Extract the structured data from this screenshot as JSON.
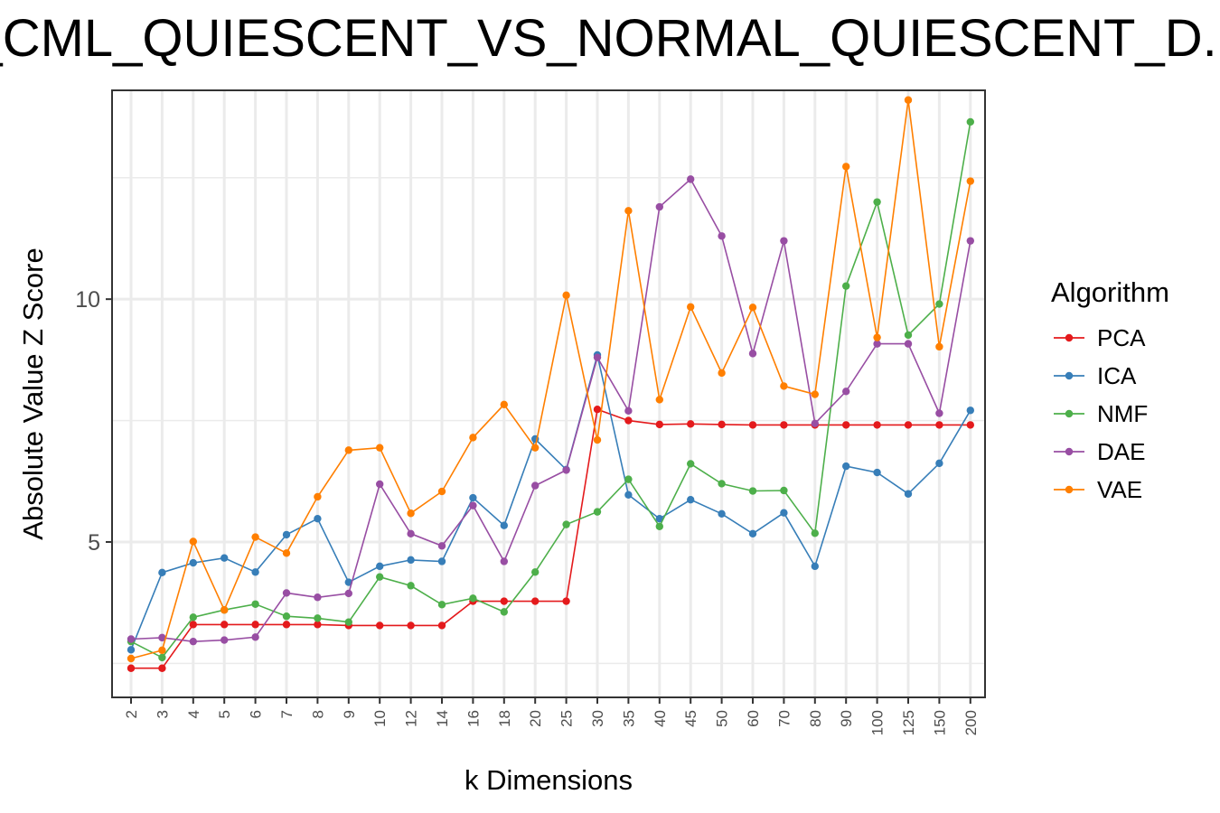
{
  "chart_data": {
    "type": "line",
    "title": "...AM_CML_QUIESCENT_VS_NORMAL_QUIESCENT_D...",
    "xlabel": "k Dimensions",
    "ylabel": "Absolute Value Z Score",
    "categories": [
      "2",
      "3",
      "4",
      "5",
      "6",
      "7",
      "8",
      "9",
      "10",
      "12",
      "14",
      "16",
      "18",
      "20",
      "25",
      "30",
      "35",
      "40",
      "45",
      "50",
      "60",
      "70",
      "80",
      "90",
      "100",
      "125",
      "150",
      "200"
    ],
    "yticks": [
      5,
      10
    ],
    "ylim": [
      1.8,
      14.3
    ],
    "grid": true,
    "legend": {
      "title": "Algorithm",
      "position": "right"
    },
    "series": [
      {
        "name": "PCA",
        "color": "#E41A1C",
        "values": [
          2.4,
          2.4,
          3.3,
          3.3,
          3.3,
          3.3,
          3.3,
          3.28,
          3.28,
          3.28,
          3.28,
          3.78,
          3.78,
          3.78,
          3.78,
          7.73,
          7.5,
          7.42,
          7.43,
          7.42,
          7.41,
          7.41,
          7.41,
          7.41,
          7.41,
          7.41,
          7.41,
          7.41
        ]
      },
      {
        "name": "ICA",
        "color": "#377EB8",
        "values": [
          2.78,
          4.37,
          4.57,
          4.67,
          4.38,
          5.15,
          5.48,
          4.17,
          4.5,
          4.63,
          4.6,
          5.91,
          5.34,
          7.12,
          6.49,
          8.85,
          5.97,
          5.48,
          5.87,
          5.58,
          5.17,
          5.6,
          4.5,
          6.56,
          6.43,
          5.99,
          6.62,
          7.71
        ]
      },
      {
        "name": "NMF",
        "color": "#4DAF4A",
        "values": [
          2.95,
          2.62,
          3.45,
          3.6,
          3.72,
          3.47,
          3.43,
          3.35,
          4.28,
          4.1,
          3.71,
          3.84,
          3.56,
          4.38,
          5.36,
          5.62,
          6.29,
          5.32,
          6.61,
          6.2,
          6.05,
          6.06,
          5.18,
          10.27,
          12.0,
          9.26,
          9.9,
          13.65
        ]
      },
      {
        "name": "DAE",
        "color": "#984EA3",
        "values": [
          3.0,
          3.03,
          2.95,
          2.98,
          3.04,
          3.95,
          3.86,
          3.94,
          6.19,
          5.17,
          4.92,
          5.75,
          4.6,
          6.16,
          6.48,
          8.8,
          7.7,
          11.9,
          12.47,
          11.3,
          8.88,
          11.2,
          7.44,
          8.1,
          9.08,
          9.08,
          7.65,
          11.2
        ]
      },
      {
        "name": "VAE",
        "color": "#FF7F00",
        "values": [
          2.6,
          2.77,
          5.01,
          3.6,
          5.1,
          4.77,
          5.93,
          6.89,
          6.94,
          5.59,
          6.04,
          7.15,
          7.83,
          6.94,
          10.08,
          7.1,
          11.82,
          7.93,
          9.84,
          8.48,
          9.83,
          8.21,
          8.04,
          12.73,
          9.21,
          14.1,
          9.02,
          12.43
        ]
      }
    ]
  }
}
